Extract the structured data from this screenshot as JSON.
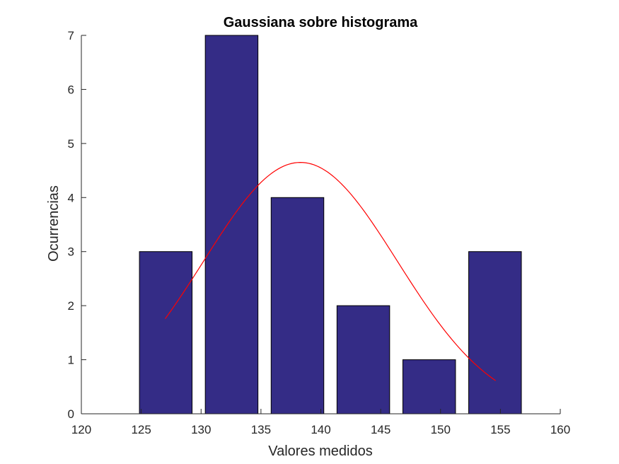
{
  "chart_data": {
    "type": "bar",
    "title": "Gaussiana sobre histograma",
    "xlabel": "Valores medidos",
    "ylabel": "Ocurrencias",
    "xlim": [
      120,
      160
    ],
    "ylim": [
      0,
      7
    ],
    "xticks": [
      "120",
      "125",
      "130",
      "135",
      "140",
      "145",
      "150",
      "155",
      "160"
    ],
    "yticks": [
      "0",
      "1",
      "2",
      "3",
      "4",
      "5",
      "6",
      "7"
    ],
    "grid": false,
    "bar_color": "#342c86",
    "bins": [
      {
        "center": 127.05,
        "value": 3
      },
      {
        "center": 132.55,
        "value": 7
      },
      {
        "center": 138.05,
        "value": 4
      },
      {
        "center": 143.55,
        "value": 2
      },
      {
        "center": 149.05,
        "value": 1
      },
      {
        "center": 154.55,
        "value": 3
      }
    ],
    "bin_width": 4.4,
    "gaussian": {
      "color": "#ff0000",
      "mean": 138.3,
      "std": 8.1,
      "peak": 4.65,
      "x_range": [
        127.0,
        154.6
      ]
    }
  }
}
